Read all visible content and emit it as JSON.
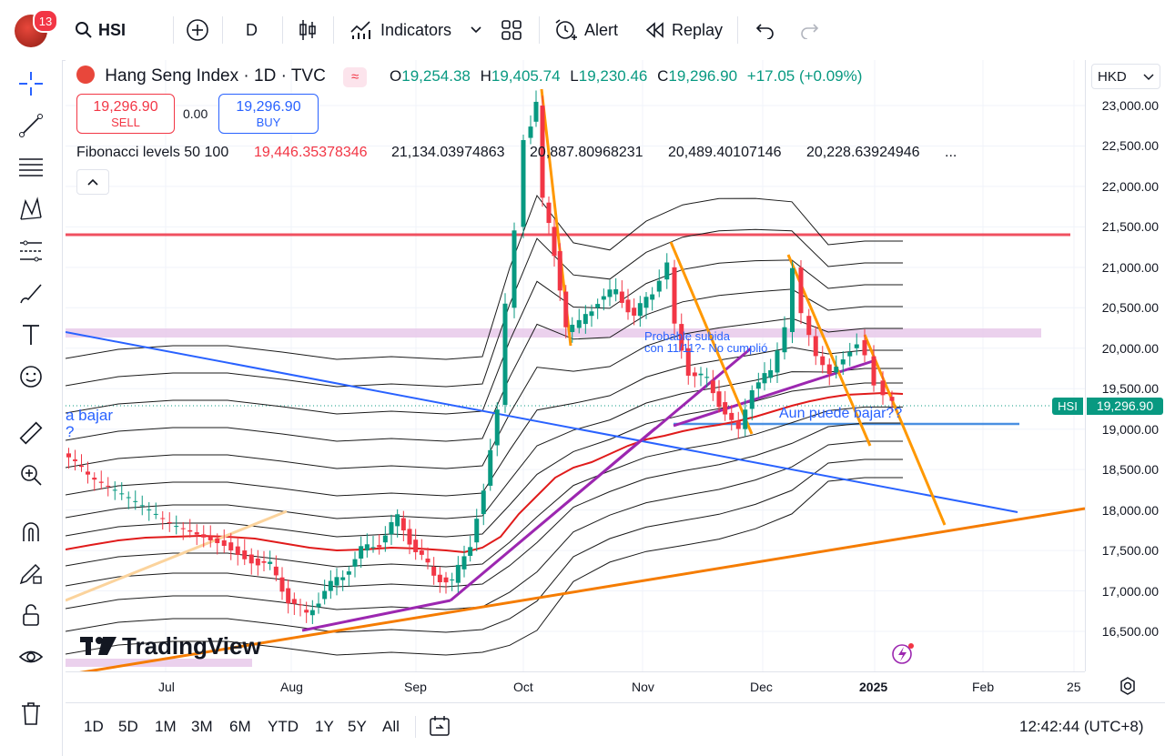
{
  "header": {
    "notification_count": "13",
    "symbol": "HSI",
    "interval": "D",
    "indicators_label": "Indicators",
    "alert_label": "Alert",
    "replay_label": "Replay"
  },
  "legend": {
    "title": "Hang Seng Index · 1D · TVC",
    "open_label": "O",
    "open": "19,254.38",
    "high_label": "H",
    "high": "19,405.74",
    "low_label": "L",
    "low": "19,230.46",
    "close_label": "C",
    "close": "19,296.90",
    "change": "+17.05 (+0.09%)",
    "sell_price": "19,296.90",
    "sell_label": "SELL",
    "spread": "0.00",
    "buy_price": "19,296.90",
    "buy_label": "BUY",
    "fib_label": "Fibonacci levels 50 100",
    "fib_values": [
      "19,446.35378346",
      "21,134.03974863",
      "20,887.80968231",
      "20,489.40107146",
      "20,228.63924946",
      "..."
    ]
  },
  "annotations": {
    "text1_line1": "Probable subida",
    "text1_line2": "con 11/11?- No cumplió",
    "text2": "Aun puede bajar??",
    "text3_line1": "a bajar",
    "text3_line2": "?",
    "watermark": "TradingView"
  },
  "price_axis": {
    "currency": "HKD",
    "labels": [
      "23,000.00",
      "22,500.00",
      "22,000.00",
      "21,500.00",
      "21,000.00",
      "20,500.00",
      "20,000.00",
      "19,500.00",
      "19,000.00",
      "18,500.00",
      "18,000.00",
      "17,500.00",
      "17,000.00",
      "16,500.00"
    ],
    "symbol_tag": "HSI",
    "last_price": "19,296.90"
  },
  "time_axis": {
    "labels": [
      "Jul",
      "Aug",
      "Sep",
      "Oct",
      "Nov",
      "Dec",
      "2025",
      "Feb",
      "25"
    ]
  },
  "bottom": {
    "ranges": [
      "1D",
      "5D",
      "1M",
      "3M",
      "6M",
      "YTD",
      "1Y",
      "5Y",
      "All"
    ],
    "clock": "12:42:44 (UTC+8)"
  },
  "colors": {
    "up": "#089981",
    "down": "#f23645",
    "ma": "#e01b1b",
    "resistance": "#f05060",
    "zone": "#e7c9ea",
    "blue_trend": "#2962ff",
    "orange_trend": "#f57c00",
    "purple": "#9c27b0",
    "amber": "#ff9800"
  },
  "chart_data": {
    "type": "candlestick",
    "y_range": [
      16300,
      23300
    ],
    "x_range": [
      "2024-06",
      "2025-02"
    ],
    "candles_ohlc_sample": [
      {
        "date": "2024-09-30",
        "open": 20500,
        "high": 21300,
        "low": 20400,
        "close": 21100
      },
      {
        "date": "2024-10-07",
        "open": 22800,
        "high": 23200,
        "low": 21000,
        "close": 21100
      },
      {
        "date": "2024-11-07",
        "open": 21000,
        "high": 21200,
        "low": 20600,
        "close": 20800
      },
      {
        "date": "2024-12-09",
        "open": 21000,
        "high": 21050,
        "low": 20300,
        "close": 20400
      },
      {
        "date": "2025-01-03",
        "open": 19254.38,
        "high": 19405.74,
        "low": 19230.46,
        "close": 19296.9
      }
    ]
  }
}
